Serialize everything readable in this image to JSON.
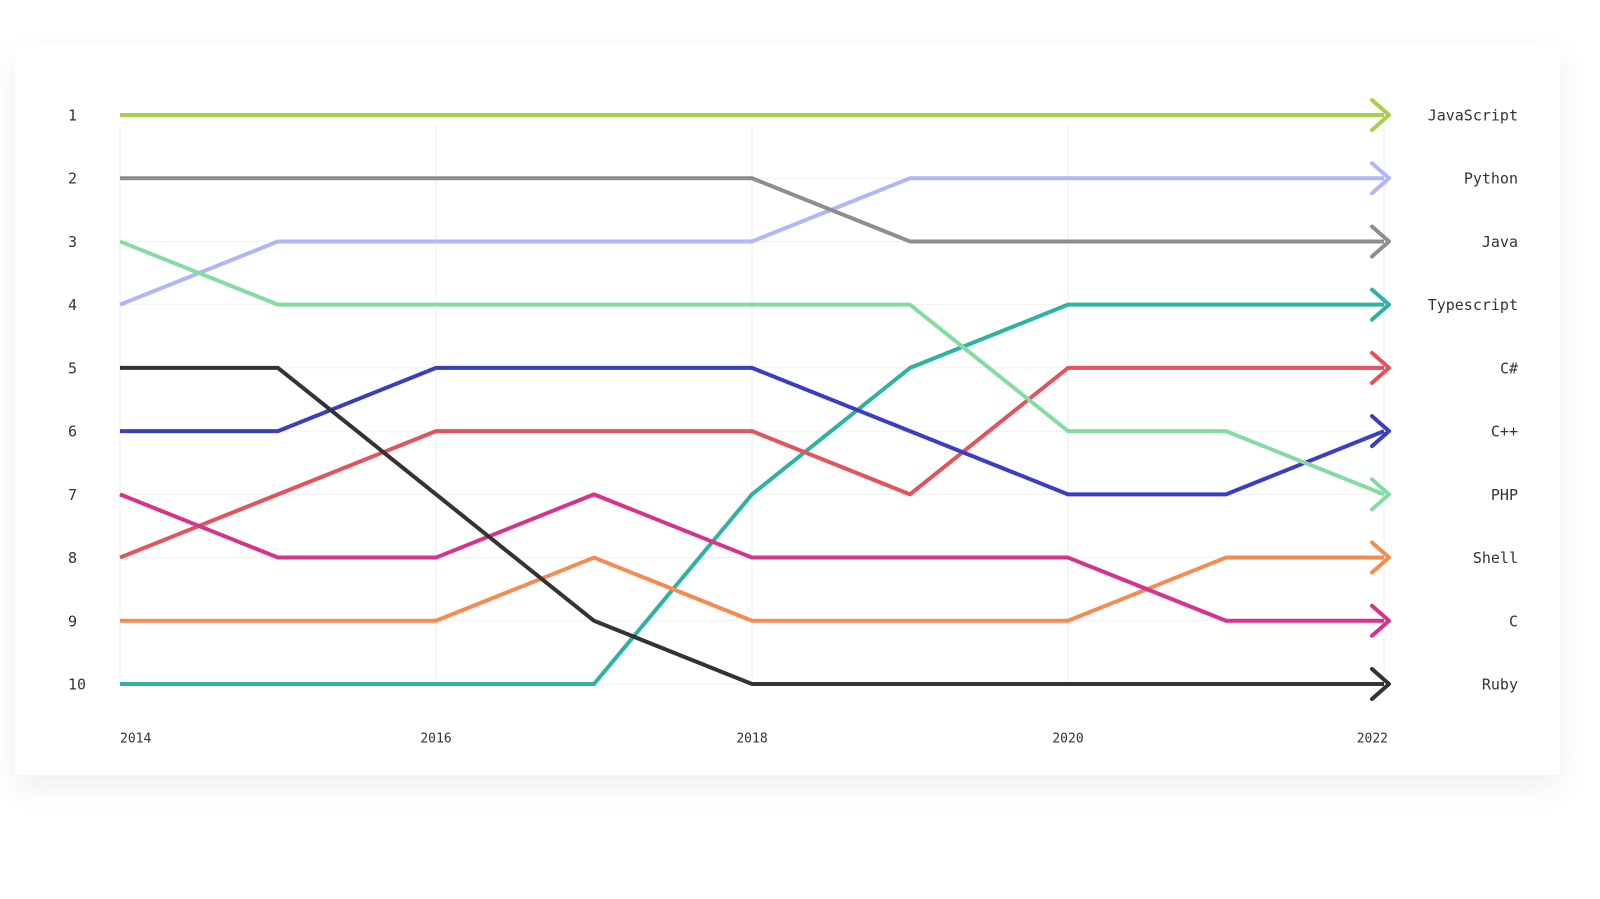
{
  "chart_data": {
    "type": "bump",
    "x": [
      2014,
      2015,
      2016,
      2017,
      2018,
      2019,
      2020,
      2021,
      2022
    ],
    "xlim": [
      2014,
      2022
    ],
    "xticks": [
      2014,
      2016,
      2018,
      2020,
      2022
    ],
    "ylim": [
      10,
      1
    ],
    "yticks": [
      1,
      2,
      3,
      4,
      5,
      6,
      7,
      8,
      9,
      10
    ],
    "grid": true,
    "series": [
      {
        "name": "JavaScript",
        "color": "#a9d04c",
        "values": [
          1,
          1,
          1,
          1,
          1,
          1,
          1,
          1,
          1
        ]
      },
      {
        "name": "Python",
        "color": "#b0b6f6",
        "values": [
          4,
          3,
          3,
          3,
          3,
          2,
          2,
          2,
          2
        ]
      },
      {
        "name": "Java",
        "color": "#8e8e8e",
        "values": [
          2,
          2,
          2,
          2,
          2,
          3,
          3,
          3,
          3
        ]
      },
      {
        "name": "Typescript",
        "color": "#2db3a1",
        "values": [
          10,
          10,
          10,
          10,
          7,
          5,
          4,
          4,
          4
        ]
      },
      {
        "name": "C#",
        "color": "#e5525c",
        "values": [
          8,
          7,
          6,
          6,
          6,
          7,
          5,
          5,
          5
        ]
      },
      {
        "name": "C++",
        "color": "#3a3ec2",
        "values": [
          6,
          6,
          5,
          5,
          5,
          6,
          7,
          7,
          6
        ]
      },
      {
        "name": "PHP",
        "color": "#84dca2",
        "values": [
          3,
          4,
          4,
          4,
          4,
          4,
          6,
          6,
          7
        ]
      },
      {
        "name": "Shell",
        "color": "#f58b52",
        "values": [
          9,
          9,
          9,
          8,
          9,
          9,
          9,
          8,
          8
        ]
      },
      {
        "name": "C",
        "color": "#d6338b",
        "values": [
          7,
          8,
          8,
          7,
          8,
          8,
          8,
          9,
          9
        ]
      },
      {
        "name": "Ruby",
        "color": "#333333",
        "values": [
          5,
          5,
          7,
          9,
          10,
          10,
          10,
          10,
          10
        ]
      }
    ]
  }
}
